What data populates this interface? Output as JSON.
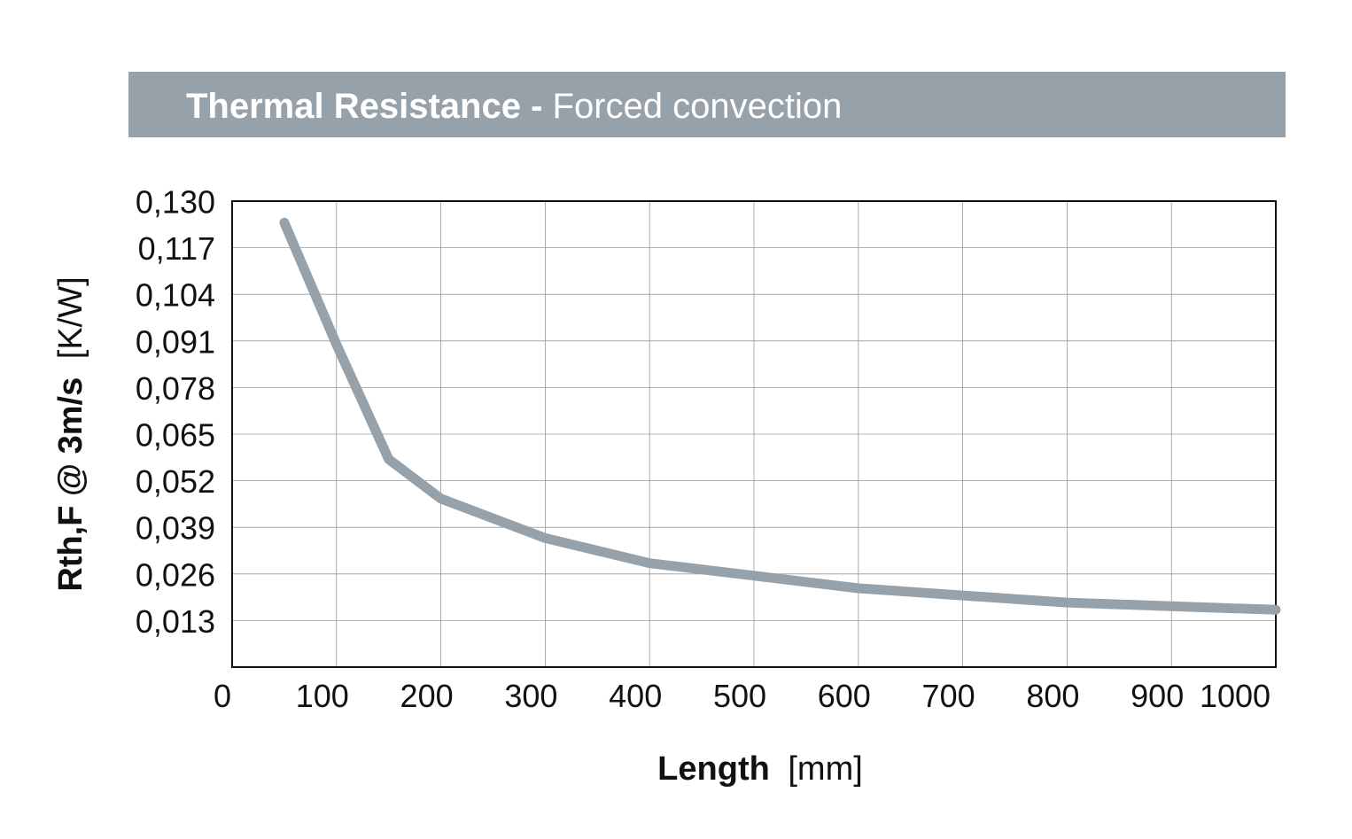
{
  "title": {
    "bold": "Thermal Resistance -",
    "light": "Forced convection"
  },
  "chart_data": {
    "type": "line",
    "title": "Thermal Resistance - Forced convection",
    "xlabel_bold": "Length",
    "xlabel_unit": "[mm]",
    "ylabel_bold": "Rth,F @ 3m/s",
    "ylabel_unit": "[K/W]",
    "xlim": [
      0,
      1000
    ],
    "ylim": [
      0,
      0.13
    ],
    "x_ticks": [
      0,
      100,
      200,
      300,
      400,
      500,
      600,
      700,
      800,
      900,
      1000
    ],
    "x_tick_labels": [
      "0",
      "100",
      "200",
      "300",
      "400",
      "500",
      "600",
      "700",
      "800",
      "900",
      "1000"
    ],
    "y_ticks": [
      0.013,
      0.026,
      0.039,
      0.052,
      0.065,
      0.078,
      0.091,
      0.104,
      0.117,
      0.13
    ],
    "y_tick_labels": [
      "0,013",
      "0,026",
      "0,039",
      "0,052",
      "0,065",
      "0,078",
      "0,091",
      "0,104",
      "0,117",
      "0,130"
    ],
    "grid": true,
    "line_color": "#96a1a9",
    "series": [
      {
        "x": [
          50,
          100,
          150,
          200,
          300,
          400,
          500,
          600,
          700,
          800,
          900,
          1000
        ],
        "y": [
          0.124,
          0.09,
          0.058,
          0.047,
          0.036,
          0.029,
          0.0255,
          0.022,
          0.02,
          0.018,
          0.017,
          0.016
        ]
      }
    ]
  }
}
